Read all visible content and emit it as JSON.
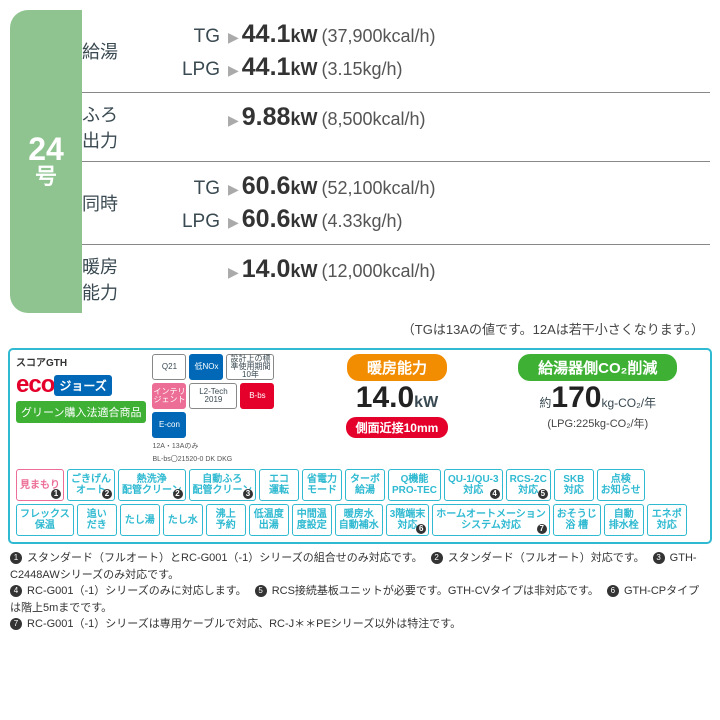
{
  "model": {
    "number": "24",
    "suffix": "号"
  },
  "spec_rows": [
    {
      "label": "給湯",
      "lines": [
        {
          "fuel": "TG",
          "kw": "44.1",
          "paren": "(37,900kcal/h)"
        },
        {
          "fuel": "LPG",
          "kw": "44.1",
          "paren": "(3.15kg/h)"
        }
      ]
    },
    {
      "label": "ふろ\n出力",
      "lines": [
        {
          "fuel": "",
          "kw": "9.88",
          "paren": "(8,500kcal/h)"
        }
      ]
    },
    {
      "label": "同時",
      "lines": [
        {
          "fuel": "TG",
          "kw": "60.6",
          "paren": "(52,100kcal/h)"
        },
        {
          "fuel": "LPG",
          "kw": "60.6",
          "paren": "(4.33kg/h)"
        }
      ]
    },
    {
      "label": "暖房\n能力",
      "lines": [
        {
          "fuel": "",
          "kw": "14.0",
          "paren": "(12,000kcal/h)"
        }
      ]
    }
  ],
  "note": "（TGは13Aの値です。12Aは若干小さくなります。）",
  "brand": {
    "score": "スコアGTH",
    "eco": "eco",
    "jaws": "ジョーズ",
    "green": "グリーン購入法適合商品",
    "sub_12a": "12A・13Aのみ"
  },
  "mini_badges": {
    "q21": "Q21",
    "nox": "低NOx",
    "ten": "設計上の標準使用期間 10年",
    "intel": "インテリジェント",
    "l2": "L2-Tech 2019",
    "bbs": "B-bs",
    "econ": "E-con",
    "bl_sub": "BL-bs〇21520-0 DK DKG"
  },
  "metrics": {
    "heat_title": "暖房能力",
    "heat_val": "14.0",
    "heat_unit": "kW",
    "heat_sub": "側面近接10mm",
    "co2_title": "給湯器側CO₂削減",
    "co2_prefix": "約",
    "co2_val": "170",
    "co2_unit": "kg-CO₂/年",
    "co2_sub": "(LPG:225kg-CO₂/年)"
  },
  "chips_row1": [
    {
      "t": "見まもり",
      "pink": true,
      "star": "1"
    },
    {
      "t": "ごきげん\nオート",
      "star": "2"
    },
    {
      "t": "熱洗浄\n配管クリーン",
      "star": "2"
    },
    {
      "t": "自動ふろ\n配管クリーン",
      "star": "3"
    },
    {
      "t": "エコ\n運転"
    },
    {
      "t": "省電力\nモード"
    },
    {
      "t": "ターボ\n給湯"
    },
    {
      "t": "Q機能\nPRO-TEC"
    },
    {
      "t": "QU-1/QU-3\n対応",
      "star": "4"
    },
    {
      "t": "RCS-2C\n対応",
      "star": "5"
    },
    {
      "t": "SKB\n対応"
    },
    {
      "t": "点検\nお知らせ"
    }
  ],
  "chips_row2": [
    {
      "t": "フレックス\n保温"
    },
    {
      "t": "追い\nだき"
    },
    {
      "t": "たし湯"
    },
    {
      "t": "たし水"
    },
    {
      "t": "沸上\n予約"
    },
    {
      "t": "低温度\n出湯"
    },
    {
      "t": "中間温\n度設定"
    },
    {
      "t": "暖房水\n自動補水"
    },
    {
      "t": "3階端末\n対応",
      "star": "6"
    },
    {
      "t": "ホームオートメーション\nシステム対応",
      "star": "7"
    },
    {
      "t": "おそうじ\n浴 槽"
    },
    {
      "t": "自動\n排水栓"
    },
    {
      "t": "エネポ\n対応"
    }
  ],
  "footnotes": [
    "スタンダード（フルオート）とRC-G001（-1）シリーズの組合せのみ対応です。",
    "スタンダード（フルオート）対応です。",
    "GTH-C2448AWシリーズのみ対応です。",
    "RC-G001（-1）シリーズのみに対応します。",
    "RCS接続基板ユニットが必要です。GTH-CVタイプは非対応です。",
    "GTH-CPタイプは階上5mまでです。",
    "RC-G001（-1）シリーズは専用ケーブルで対応、RC-J＊＊PEシリーズ以外は特注です。"
  ]
}
